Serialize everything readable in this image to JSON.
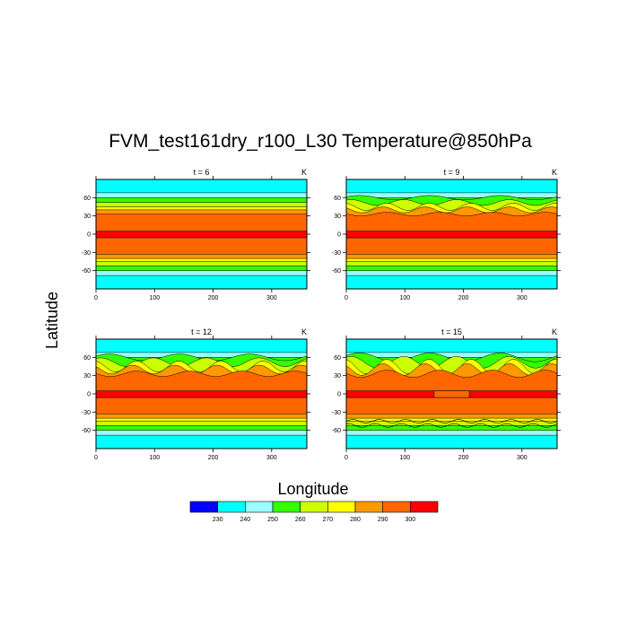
{
  "figure": {
    "title": "FVM_test161dry_r100_L30 Temperature@850hPa",
    "xlabel": "Longitude",
    "ylabel": "Latitude"
  },
  "chart_data": [
    {
      "type": "heatmap",
      "panel_title": "t = 6",
      "units": "K",
      "xlim": [
        0,
        360
      ],
      "ylim": [
        -90,
        90
      ],
      "xticks": [
        0,
        100,
        200,
        300
      ],
      "yticks": [
        -60,
        -30,
        0,
        30,
        60
      ],
      "disturbed": "none"
    },
    {
      "type": "heatmap",
      "panel_title": "t = 9",
      "units": "K",
      "xlim": [
        0,
        360
      ],
      "ylim": [
        -90,
        90
      ],
      "xticks": [
        0,
        100,
        200,
        300
      ],
      "yticks": [
        -60,
        -30,
        0,
        30,
        60
      ],
      "disturbed": "north-waves-small"
    },
    {
      "type": "heatmap",
      "panel_title": "t = 12",
      "units": "K",
      "xlim": [
        0,
        360
      ],
      "ylim": [
        -90,
        90
      ],
      "xticks": [
        0,
        100,
        200,
        300
      ],
      "yticks": [
        -60,
        -30,
        0,
        30,
        60
      ],
      "disturbed": "north-waves-medium"
    },
    {
      "type": "heatmap",
      "panel_title": "t = 15",
      "units": "K",
      "xlim": [
        0,
        360
      ],
      "ylim": [
        -90,
        90
      ],
      "xticks": [
        0,
        100,
        200,
        300
      ],
      "yticks": [
        -60,
        -30,
        0,
        30,
        60
      ],
      "disturbed": "north-waves-large-south-waves"
    }
  ],
  "colorbar": {
    "levels": [
      "230",
      "240",
      "250",
      "260",
      "270",
      "280",
      "290",
      "300"
    ],
    "colors": [
      "#0000ff",
      "#00ffff",
      "#9bffff",
      "#33ff00",
      "#ccff00",
      "#ffff00",
      "#ff9900",
      "#ff6600",
      "#ff0000"
    ]
  },
  "palette": {
    "cyan": "#00ffff",
    "lightcyan": "#9bffff",
    "green": "#33ff00",
    "yellowgreen": "#ccff00",
    "yellow": "#ffff00",
    "lightorange": "#ff9900",
    "orange": "#ff6600",
    "red": "#ff0000"
  }
}
